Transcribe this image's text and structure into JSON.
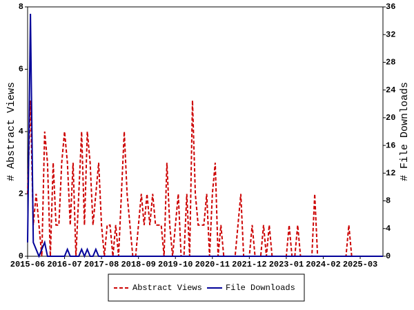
{
  "chart_data": {
    "type": "line",
    "y_label": "# Abstract Views",
    "y2_label": "# File Downloads",
    "categories": [
      "2015-06",
      "2015-07",
      "2015-08",
      "2015-09",
      "2015-10",
      "2015-11",
      "2015-12",
      "2016-01",
      "2016-02",
      "2016-03",
      "2016-04",
      "2016-05",
      "2016-06",
      "2016-07",
      "2016-08",
      "2016-09",
      "2016-10",
      "2016-11",
      "2016-12",
      "2017-01",
      "2017-02",
      "2017-03",
      "2017-04",
      "2017-05",
      "2017-06",
      "2017-07",
      "2017-08",
      "2017-09",
      "2017-10",
      "2017-11",
      "2017-12",
      "2018-01",
      "2018-02",
      "2018-03",
      "2018-04",
      "2018-05",
      "2018-06",
      "2018-07",
      "2018-08",
      "2018-09",
      "2018-10",
      "2018-11",
      "2018-12",
      "2019-01",
      "2019-02",
      "2019-03",
      "2019-04",
      "2019-05",
      "2019-06",
      "2019-07",
      "2019-08",
      "2019-09",
      "2019-10",
      "2019-11",
      "2019-12",
      "2020-01",
      "2020-02",
      "2020-03",
      "2020-04",
      "2020-05",
      "2020-06",
      "2020-07",
      "2020-08",
      "2020-09",
      "2020-10",
      "2020-11",
      "2020-12",
      "2021-01",
      "2021-02",
      "2021-03",
      "2021-04",
      "2021-05",
      "2021-06",
      "2021-07",
      "2021-08",
      "2021-09",
      "2021-10",
      "2021-11",
      "2021-12",
      "2022-01",
      "2022-02",
      "2022-03",
      "2022-04",
      "2022-05",
      "2022-06",
      "2022-07",
      "2022-08",
      "2022-09",
      "2022-10",
      "2022-11",
      "2022-12",
      "2023-01",
      "2023-02",
      "2023-03",
      "2023-04",
      "2023-05",
      "2023-06",
      "2023-07",
      "2023-08",
      "2023-09",
      "2023-10",
      "2023-11",
      "2023-12",
      "2024-01",
      "2024-02",
      "2024-03",
      "2024-04",
      "2024-05",
      "2024-06",
      "2024-07",
      "2024-08",
      "2024-09",
      "2024-10",
      "2024-11",
      "2024-12",
      "2025-01",
      "2025-02",
      "2025-03",
      "2025-04",
      "2025-05",
      "2025-06",
      "2025-07",
      "2025-08",
      "2025-09",
      "2025-10",
      "2025-11"
    ],
    "xticks": [
      "2015-06",
      "2016-07",
      "2017-08",
      "2018-09",
      "2019-10",
      "2020-11",
      "2021-12",
      "2023-01",
      "2024-02",
      "2025-03"
    ],
    "series": [
      {
        "name": "Abstract Views",
        "color": "#cc0000",
        "dash": true,
        "values": [
          2,
          5,
          1,
          2,
          1,
          0,
          4,
          3,
          0,
          3,
          1,
          1,
          3,
          4,
          3,
          1,
          3,
          0,
          2,
          4,
          1,
          4,
          3,
          1,
          2,
          3,
          1,
          0,
          1,
          1,
          0,
          1,
          0,
          2,
          4,
          2,
          1,
          0,
          0,
          1,
          2,
          1,
          2,
          1,
          2,
          1,
          1,
          1,
          0,
          3,
          1,
          0,
          1,
          2,
          0,
          0,
          2,
          0,
          5,
          2,
          1,
          1,
          1,
          2,
          0,
          2,
          3,
          0,
          1,
          0,
          0,
          0,
          0,
          0,
          1,
          2,
          0,
          0,
          0,
          1,
          0,
          0,
          0,
          1,
          0,
          1,
          0,
          0,
          0,
          0,
          0,
          0,
          1,
          0,
          0,
          1,
          0,
          0,
          0,
          0,
          0,
          2,
          0,
          0,
          0,
          0,
          0,
          0,
          0,
          0,
          0,
          0,
          0,
          1,
          0,
          0,
          0,
          0,
          0,
          0,
          0,
          0,
          0,
          0,
          0,
          0
        ]
      },
      {
        "name": "File Downloads",
        "color": "#000099",
        "axis": "y2",
        "dash": false,
        "values": [
          2,
          35,
          2,
          1,
          0,
          1,
          2,
          0,
          0,
          0,
          0,
          0,
          0,
          0,
          1,
          0,
          0,
          0,
          0,
          1,
          0,
          1,
          0,
          0,
          1,
          0,
          0,
          0,
          0,
          0,
          0,
          0,
          0,
          0,
          0,
          0,
          0,
          0,
          0,
          0,
          0,
          0,
          0,
          0,
          0,
          0,
          0,
          0,
          0,
          0,
          0,
          0,
          0,
          0,
          0,
          0,
          0,
          0,
          0,
          0,
          0,
          0,
          0,
          0,
          0,
          0,
          0,
          0,
          0,
          0,
          0,
          0,
          0,
          0,
          0,
          0,
          0,
          0,
          0,
          0,
          0,
          0,
          0,
          0,
          0,
          0,
          0,
          0,
          0,
          0,
          0,
          0,
          0,
          0,
          0,
          0,
          0,
          0,
          0,
          0,
          0,
          0,
          0,
          0,
          0,
          0,
          0,
          0,
          0,
          0,
          0,
          0,
          0,
          0,
          0,
          0,
          0,
          0,
          0,
          0,
          0,
          0,
          0,
          0,
          0,
          0
        ]
      }
    ],
    "ylim": [
      0,
      8
    ],
    "yticks": [
      0,
      2,
      4,
      6,
      8
    ],
    "y2lim": [
      0,
      36
    ],
    "y2ticks": [
      0,
      4,
      8,
      12,
      16,
      20,
      24,
      28,
      32,
      36
    ],
    "legend": "bottom",
    "grid": false
  }
}
